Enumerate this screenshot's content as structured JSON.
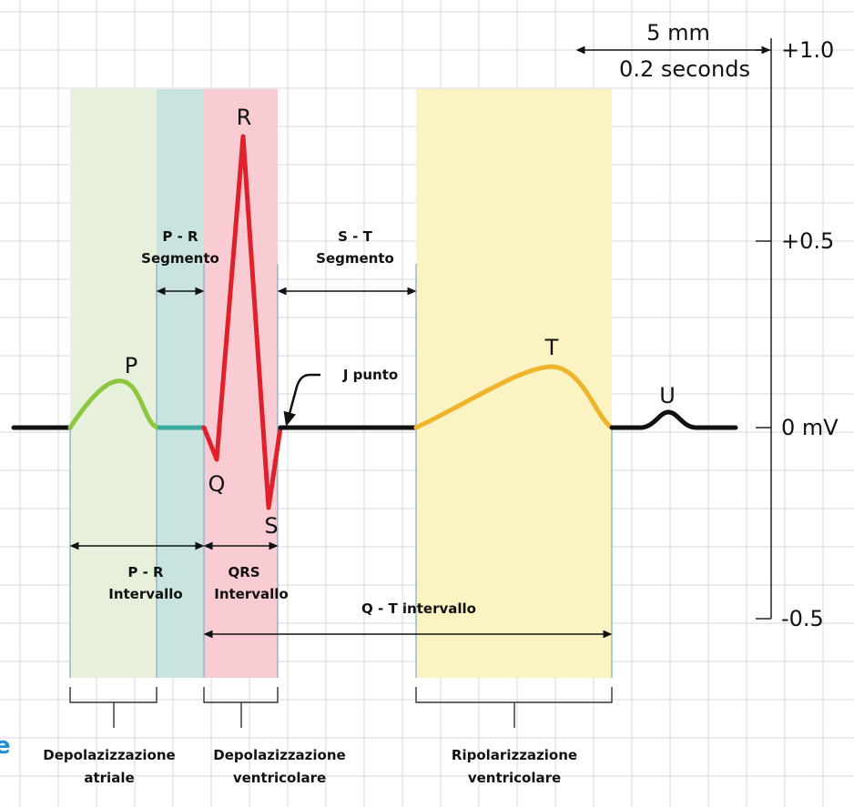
{
  "scale": {
    "length": "5 mm",
    "duration": "0.2 seconds",
    "ticks": [
      "+1.0",
      "+0.5",
      "0 mV",
      "-0.5"
    ]
  },
  "waves": {
    "p": "P",
    "q": "Q",
    "r": "R",
    "s": "S",
    "t": "T",
    "u": "U"
  },
  "segments": {
    "pr": {
      "name": "P - R",
      "kind": "Segmento"
    },
    "st": {
      "name": "S - T",
      "kind": "Segmento"
    },
    "j": "J punto"
  },
  "intervals": {
    "pr": {
      "name": "P - R",
      "kind": "Intervallo"
    },
    "qrs": {
      "name": "QRS",
      "kind": "Intervallo"
    },
    "qt": "Q - T intervallo"
  },
  "phases": [
    {
      "line1": "Depolazizzazione",
      "line2": "atriale"
    },
    {
      "line1": "Depolazizzazione",
      "line2": "ventricolare"
    },
    {
      "line1": "Ripolarizzazione",
      "line2": "ventricolare"
    }
  ],
  "edge_text": "e"
}
